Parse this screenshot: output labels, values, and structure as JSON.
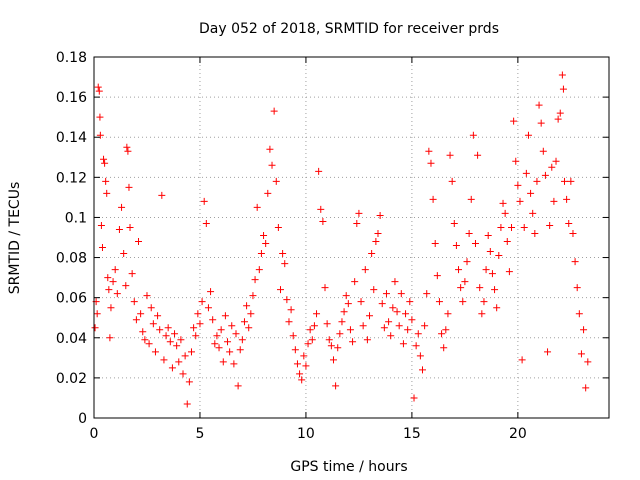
{
  "chart_data": {
    "type": "scatter",
    "title": "Day 052 of 2018, SRMTID for receiver prds",
    "xlabel": "GPS time / hours",
    "ylabel": "SRMTID / TECUs",
    "xlim": [
      0,
      24.3
    ],
    "ylim": [
      0,
      0.18
    ],
    "grid": true,
    "marker": "+",
    "color": "#ff0000",
    "x_ticks": [
      {
        "value": 0,
        "label": "0"
      },
      {
        "value": 5,
        "label": "5"
      },
      {
        "value": 10,
        "label": "10"
      },
      {
        "value": 15,
        "label": "15"
      },
      {
        "value": 20,
        "label": "20"
      }
    ],
    "y_ticks": [
      {
        "value": 0,
        "label": "0"
      },
      {
        "value": 0.02,
        "label": "0.02"
      },
      {
        "value": 0.04,
        "label": "0.04"
      },
      {
        "value": 0.06,
        "label": "0.06"
      },
      {
        "value": 0.08,
        "label": "0.08"
      },
      {
        "value": 0.1,
        "label": "0.1"
      },
      {
        "value": 0.12,
        "label": "0.12"
      },
      {
        "value": 0.14,
        "label": "0.14"
      },
      {
        "value": 0.16,
        "label": "0.16"
      },
      {
        "value": 0.18,
        "label": "0.18"
      }
    ],
    "series": [
      {
        "name": "SRMTID",
        "points": [
          [
            0.05,
            0.045
          ],
          [
            0.1,
            0.058
          ],
          [
            0.15,
            0.052
          ],
          [
            0.2,
            0.165
          ],
          [
            0.25,
            0.163
          ],
          [
            0.28,
            0.15
          ],
          [
            0.3,
            0.141
          ],
          [
            0.35,
            0.096
          ],
          [
            0.4,
            0.085
          ],
          [
            0.45,
            0.129
          ],
          [
            0.5,
            0.127
          ],
          [
            0.55,
            0.118
          ],
          [
            0.6,
            0.112
          ],
          [
            0.65,
            0.07
          ],
          [
            0.7,
            0.064
          ],
          [
            0.75,
            0.04
          ],
          [
            0.8,
            0.055
          ],
          [
            0.9,
            0.068
          ],
          [
            1.0,
            0.074
          ],
          [
            1.1,
            0.062
          ],
          [
            1.2,
            0.094
          ],
          [
            1.3,
            0.105
          ],
          [
            1.4,
            0.082
          ],
          [
            1.5,
            0.066
          ],
          [
            1.55,
            0.135
          ],
          [
            1.6,
            0.133
          ],
          [
            1.65,
            0.115
          ],
          [
            1.7,
            0.095
          ],
          [
            1.8,
            0.072
          ],
          [
            1.9,
            0.058
          ],
          [
            2.0,
            0.049
          ],
          [
            2.1,
            0.088
          ],
          [
            2.2,
            0.052
          ],
          [
            2.3,
            0.043
          ],
          [
            2.4,
            0.039
          ],
          [
            2.5,
            0.061
          ],
          [
            2.6,
            0.037
          ],
          [
            2.7,
            0.055
          ],
          [
            2.8,
            0.047
          ],
          [
            2.9,
            0.033
          ],
          [
            3.0,
            0.051
          ],
          [
            3.1,
            0.044
          ],
          [
            3.2,
            0.111
          ],
          [
            3.3,
            0.029
          ],
          [
            3.4,
            0.041
          ],
          [
            3.5,
            0.045
          ],
          [
            3.6,
            0.038
          ],
          [
            3.7,
            0.025
          ],
          [
            3.8,
            0.042
          ],
          [
            3.9,
            0.036
          ],
          [
            4.0,
            0.028
          ],
          [
            4.1,
            0.039
          ],
          [
            4.2,
            0.022
          ],
          [
            4.3,
            0.031
          ],
          [
            4.4,
            0.007
          ],
          [
            4.5,
            0.018
          ],
          [
            4.6,
            0.033
          ],
          [
            4.7,
            0.045
          ],
          [
            4.8,
            0.041
          ],
          [
            4.9,
            0.052
          ],
          [
            5.0,
            0.047
          ],
          [
            5.1,
            0.058
          ],
          [
            5.2,
            0.108
          ],
          [
            5.3,
            0.097
          ],
          [
            5.4,
            0.055
          ],
          [
            5.5,
            0.063
          ],
          [
            5.6,
            0.049
          ],
          [
            5.7,
            0.037
          ],
          [
            5.8,
            0.041
          ],
          [
            5.9,
            0.035
          ],
          [
            6.0,
            0.044
          ],
          [
            6.1,
            0.028
          ],
          [
            6.2,
            0.051
          ],
          [
            6.3,
            0.038
          ],
          [
            6.4,
            0.033
          ],
          [
            6.5,
            0.046
          ],
          [
            6.6,
            0.027
          ],
          [
            6.7,
            0.042
          ],
          [
            6.8,
            0.016
          ],
          [
            6.9,
            0.034
          ],
          [
            7.0,
            0.039
          ],
          [
            7.1,
            0.048
          ],
          [
            7.2,
            0.056
          ],
          [
            7.3,
            0.045
          ],
          [
            7.4,
            0.052
          ],
          [
            7.5,
            0.061
          ],
          [
            7.6,
            0.069
          ],
          [
            7.7,
            0.105
          ],
          [
            7.8,
            0.074
          ],
          [
            7.9,
            0.082
          ],
          [
            8.0,
            0.091
          ],
          [
            8.1,
            0.087
          ],
          [
            8.2,
            0.112
          ],
          [
            8.3,
            0.134
          ],
          [
            8.4,
            0.126
          ],
          [
            8.5,
            0.153
          ],
          [
            8.6,
            0.118
          ],
          [
            8.7,
            0.095
          ],
          [
            8.8,
            0.064
          ],
          [
            8.9,
            0.082
          ],
          [
            9.0,
            0.077
          ],
          [
            9.1,
            0.059
          ],
          [
            9.2,
            0.048
          ],
          [
            9.3,
            0.054
          ],
          [
            9.4,
            0.041
          ],
          [
            9.5,
            0.034
          ],
          [
            9.6,
            0.027
          ],
          [
            9.7,
            0.022
          ],
          [
            9.8,
            0.019
          ],
          [
            9.9,
            0.031
          ],
          [
            10.0,
            0.026
          ],
          [
            10.1,
            0.037
          ],
          [
            10.2,
            0.044
          ],
          [
            10.3,
            0.039
          ],
          [
            10.4,
            0.046
          ],
          [
            10.5,
            0.052
          ],
          [
            10.6,
            0.123
          ],
          [
            10.7,
            0.104
          ],
          [
            10.8,
            0.098
          ],
          [
            10.9,
            0.065
          ],
          [
            11.0,
            0.047
          ],
          [
            11.1,
            0.039
          ],
          [
            11.2,
            0.036
          ],
          [
            11.3,
            0.029
          ],
          [
            11.4,
            0.016
          ],
          [
            11.5,
            0.035
          ],
          [
            11.6,
            0.042
          ],
          [
            11.7,
            0.048
          ],
          [
            11.8,
            0.053
          ],
          [
            11.9,
            0.061
          ],
          [
            12.0,
            0.057
          ],
          [
            12.1,
            0.044
          ],
          [
            12.2,
            0.038
          ],
          [
            12.3,
            0.068
          ],
          [
            12.4,
            0.097
          ],
          [
            12.5,
            0.102
          ],
          [
            12.6,
            0.058
          ],
          [
            12.7,
            0.046
          ],
          [
            12.8,
            0.074
          ],
          [
            12.9,
            0.039
          ],
          [
            13.0,
            0.051
          ],
          [
            13.1,
            0.082
          ],
          [
            13.2,
            0.064
          ],
          [
            13.3,
            0.088
          ],
          [
            13.4,
            0.092
          ],
          [
            13.5,
            0.101
          ],
          [
            13.6,
            0.057
          ],
          [
            13.7,
            0.045
          ],
          [
            13.8,
            0.062
          ],
          [
            13.9,
            0.048
          ],
          [
            14.0,
            0.041
          ],
          [
            14.1,
            0.055
          ],
          [
            14.2,
            0.068
          ],
          [
            14.3,
            0.053
          ],
          [
            14.4,
            0.046
          ],
          [
            14.5,
            0.062
          ],
          [
            14.6,
            0.037
          ],
          [
            14.7,
            0.052
          ],
          [
            14.8,
            0.044
          ],
          [
            14.9,
            0.058
          ],
          [
            15.0,
            0.049
          ],
          [
            15.1,
            0.01
          ],
          [
            15.2,
            0.036
          ],
          [
            15.3,
            0.042
          ],
          [
            15.4,
            0.031
          ],
          [
            15.5,
            0.024
          ],
          [
            15.6,
            0.046
          ],
          [
            15.7,
            0.062
          ],
          [
            15.8,
            0.133
          ],
          [
            15.9,
            0.127
          ],
          [
            16.0,
            0.109
          ],
          [
            16.1,
            0.087
          ],
          [
            16.2,
            0.071
          ],
          [
            16.3,
            0.058
          ],
          [
            16.4,
            0.042
          ],
          [
            16.5,
            0.035
          ],
          [
            16.6,
            0.044
          ],
          [
            16.7,
            0.052
          ],
          [
            16.8,
            0.131
          ],
          [
            16.9,
            0.118
          ],
          [
            17.0,
            0.097
          ],
          [
            17.1,
            0.086
          ],
          [
            17.2,
            0.074
          ],
          [
            17.3,
            0.065
          ],
          [
            17.4,
            0.058
          ],
          [
            17.5,
            0.068
          ],
          [
            17.6,
            0.078
          ],
          [
            17.7,
            0.092
          ],
          [
            17.8,
            0.109
          ],
          [
            17.9,
            0.141
          ],
          [
            18.0,
            0.087
          ],
          [
            18.1,
            0.131
          ],
          [
            18.2,
            0.065
          ],
          [
            18.3,
            0.052
          ],
          [
            18.4,
            0.058
          ],
          [
            18.5,
            0.074
          ],
          [
            18.6,
            0.091
          ],
          [
            18.7,
            0.083
          ],
          [
            18.8,
            0.072
          ],
          [
            18.9,
            0.064
          ],
          [
            19.0,
            0.055
          ],
          [
            19.1,
            0.081
          ],
          [
            19.2,
            0.095
          ],
          [
            19.3,
            0.107
          ],
          [
            19.4,
            0.102
          ],
          [
            19.5,
            0.088
          ],
          [
            19.6,
            0.073
          ],
          [
            19.7,
            0.095
          ],
          [
            19.8,
            0.148
          ],
          [
            19.9,
            0.128
          ],
          [
            20.0,
            0.116
          ],
          [
            20.1,
            0.108
          ],
          [
            20.2,
            0.029
          ],
          [
            20.3,
            0.095
          ],
          [
            20.4,
            0.122
          ],
          [
            20.5,
            0.141
          ],
          [
            20.6,
            0.112
          ],
          [
            20.7,
            0.102
          ],
          [
            20.8,
            0.092
          ],
          [
            20.9,
            0.118
          ],
          [
            21.0,
            0.156
          ],
          [
            21.1,
            0.147
          ],
          [
            21.2,
            0.133
          ],
          [
            21.3,
            0.121
          ],
          [
            21.4,
            0.033
          ],
          [
            21.5,
            0.096
          ],
          [
            21.6,
            0.125
          ],
          [
            21.7,
            0.108
          ],
          [
            21.8,
            0.128
          ],
          [
            21.9,
            0.149
          ],
          [
            22.0,
            0.152
          ],
          [
            22.1,
            0.171
          ],
          [
            22.15,
            0.164
          ],
          [
            22.2,
            0.118
          ],
          [
            22.3,
            0.109
          ],
          [
            22.4,
            0.097
          ],
          [
            22.5,
            0.118
          ],
          [
            22.6,
            0.092
          ],
          [
            22.7,
            0.078
          ],
          [
            22.8,
            0.065
          ],
          [
            22.9,
            0.052
          ],
          [
            23.0,
            0.032
          ],
          [
            23.1,
            0.044
          ],
          [
            23.2,
            0.015
          ],
          [
            23.3,
            0.028
          ]
        ]
      }
    ]
  }
}
